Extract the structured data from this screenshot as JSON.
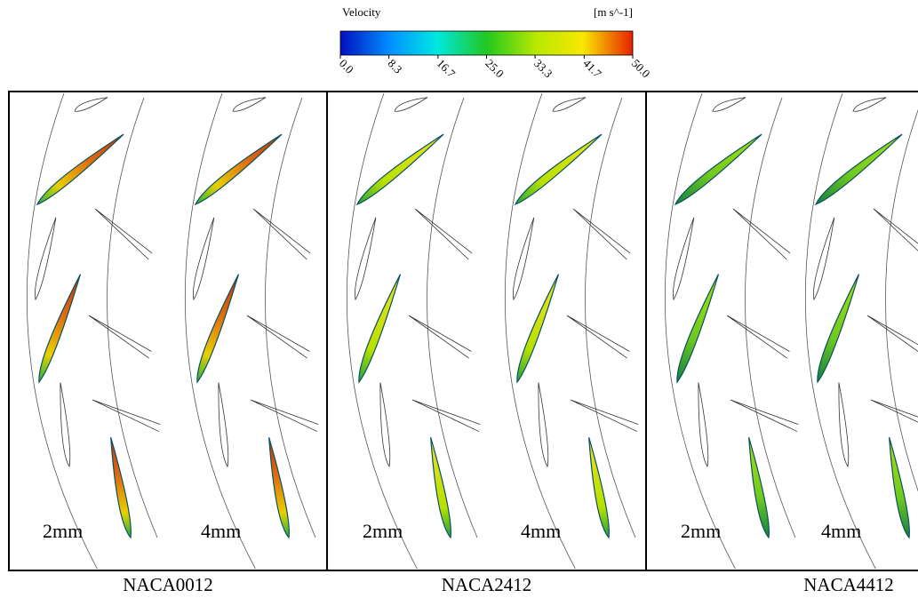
{
  "colorbar": {
    "title": "Velocity",
    "unit": "[m s^-1]",
    "lim": [
      0,
      50
    ],
    "ticks": [
      {
        "value": 0,
        "label": "0.0"
      },
      {
        "value": 8.3,
        "label": "8.3"
      },
      {
        "value": 16.7,
        "label": "16.7"
      },
      {
        "value": 25,
        "label": "25.0"
      },
      {
        "value": 33.3,
        "label": "33.3"
      },
      {
        "value": 41.7,
        "label": "41.7"
      },
      {
        "value": 50,
        "label": "50.0"
      }
    ]
  },
  "panels": [
    {
      "name": "NACA0012",
      "labels": [
        "2mm",
        "4mm"
      ]
    },
    {
      "name": "NACA2412",
      "labels": [
        "2mm",
        "4mm"
      ]
    },
    {
      "name": "NACA4412",
      "labels": [
        "2mm",
        "4mm"
      ]
    }
  ]
}
